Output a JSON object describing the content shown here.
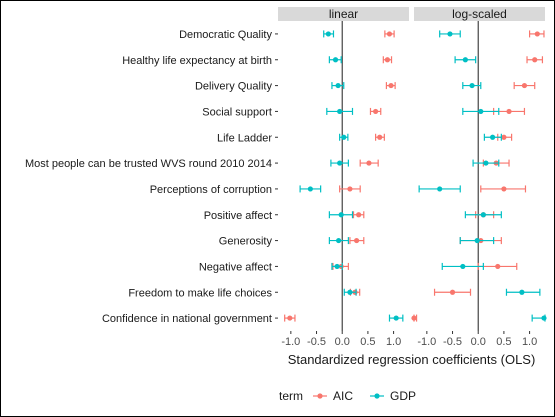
{
  "chart_data": {
    "type": "scatter",
    "subtype": "coefficient-plot-with-error-bars",
    "xlabel": "Standardized regression coefficients (OLS)",
    "facets": [
      "linear",
      "log-scaled"
    ],
    "xlim": [
      -1.25,
      1.3
    ],
    "xticks": [
      -1.0,
      -0.5,
      0.0,
      0.5,
      1.0
    ],
    "xtick_labels": [
      "-1.0",
      "-0.5",
      "0.0",
      "0.5",
      "1.0"
    ],
    "reference_line": 0,
    "terms": [
      "Democratic Quality",
      "Healthy life expectancy at birth",
      "Delivery Quality",
      "Social support",
      "Life Ladder",
      "Most people can be trusted  WVS round 2010 2014",
      "Perceptions of corruption",
      "Positive affect",
      "Generosity",
      "Negative affect",
      "Freedom to make life choices",
      "Confidence in national government"
    ],
    "legend": {
      "title": "term",
      "position": "bottom",
      "entries": [
        {
          "name": "AIC",
          "color": "#F8766D"
        },
        {
          "name": "GDP",
          "color": "#00BFC4"
        }
      ]
    },
    "series": [
      {
        "facet": "linear",
        "name": "AIC",
        "color": "#F8766D",
        "points": [
          {
            "term": "Democratic Quality",
            "est": 0.92,
            "lo": 0.83,
            "hi": 1.01
          },
          {
            "term": "Healthy life expectancy at birth",
            "est": 0.88,
            "lo": 0.8,
            "hi": 0.96
          },
          {
            "term": "Delivery Quality",
            "est": 0.95,
            "lo": 0.86,
            "hi": 1.03
          },
          {
            "term": "Social support",
            "est": 0.65,
            "lo": 0.55,
            "hi": 0.75
          },
          {
            "term": "Life Ladder",
            "est": 0.73,
            "lo": 0.65,
            "hi": 0.82
          },
          {
            "term": "Most people can be trusted  WVS round 2010 2014",
            "est": 0.52,
            "lo": 0.35,
            "hi": 0.7
          },
          {
            "term": "Perceptions of corruption",
            "est": 0.15,
            "lo": -0.05,
            "hi": 0.35
          },
          {
            "term": "Positive affect",
            "est": 0.32,
            "lo": 0.22,
            "hi": 0.42
          },
          {
            "term": "Generosity",
            "est": 0.28,
            "lo": 0.15,
            "hi": 0.42
          },
          {
            "term": "Negative affect",
            "est": -0.02,
            "lo": -0.18,
            "hi": 0.12
          },
          {
            "term": "Freedom to make life choices",
            "est": 0.25,
            "lo": 0.16,
            "hi": 0.34
          },
          {
            "term": "Confidence in national government",
            "est": -1.02,
            "lo": -1.12,
            "hi": -0.92
          }
        ]
      },
      {
        "facet": "linear",
        "name": "GDP",
        "color": "#00BFC4",
        "points": [
          {
            "term": "Democratic Quality",
            "est": -0.27,
            "lo": -0.36,
            "hi": -0.17
          },
          {
            "term": "Healthy life expectancy at birth",
            "est": -0.13,
            "lo": -0.25,
            "hi": -0.02
          },
          {
            "term": "Delivery Quality",
            "est": -0.08,
            "lo": -0.2,
            "hi": 0.03
          },
          {
            "term": "Social support",
            "est": -0.05,
            "lo": -0.3,
            "hi": 0.2
          },
          {
            "term": "Life Ladder",
            "est": 0.03,
            "lo": -0.05,
            "hi": 0.11
          },
          {
            "term": "Most people can be trusted  WVS round 2010 2014",
            "est": -0.05,
            "lo": -0.22,
            "hi": 0.12
          },
          {
            "term": "Perceptions of corruption",
            "est": -0.62,
            "lo": -0.82,
            "hi": -0.42
          },
          {
            "term": "Positive affect",
            "est": -0.02,
            "lo": -0.25,
            "hi": 0.2
          },
          {
            "term": "Generosity",
            "est": -0.07,
            "lo": -0.25,
            "hi": 0.12
          },
          {
            "term": "Negative affect",
            "est": -0.1,
            "lo": -0.2,
            "hi": 0.0
          },
          {
            "term": "Freedom to make life choices",
            "est": 0.15,
            "lo": 0.04,
            "hi": 0.27
          },
          {
            "term": "Confidence in national government",
            "est": 1.05,
            "lo": 0.92,
            "hi": 1.18
          }
        ]
      },
      {
        "facet": "log-scaled",
        "name": "AIC",
        "color": "#F8766D",
        "points": [
          {
            "term": "Democratic Quality",
            "est": 1.15,
            "lo": 1.0,
            "hi": 1.28
          },
          {
            "term": "Healthy life expectancy at birth",
            "est": 1.1,
            "lo": 0.95,
            "hi": 1.25
          },
          {
            "term": "Delivery Quality",
            "est": 0.9,
            "lo": 0.7,
            "hi": 1.1
          },
          {
            "term": "Social support",
            "est": 0.6,
            "lo": 0.3,
            "hi": 0.9
          },
          {
            "term": "Life Ladder",
            "est": 0.5,
            "lo": 0.38,
            "hi": 0.65
          },
          {
            "term": "Most people can be trusted  WVS round 2010 2014",
            "est": 0.35,
            "lo": 0.1,
            "hi": 0.6
          },
          {
            "term": "Perceptions of corruption",
            "est": 0.5,
            "lo": 0.05,
            "hi": 0.92
          },
          {
            "term": "Positive affect",
            "est": 0.1,
            "lo": -0.05,
            "hi": 0.3
          },
          {
            "term": "Generosity",
            "est": 0.05,
            "lo": -0.35,
            "hi": 0.45
          },
          {
            "term": "Negative affect",
            "est": 0.38,
            "lo": 0.0,
            "hi": 0.75
          },
          {
            "term": "Freedom to make life choices",
            "est": -0.5,
            "lo": -0.85,
            "hi": -0.15
          },
          {
            "term": "Confidence in national government",
            "est": -1.25,
            "lo": -1.3,
            "hi": -1.2
          }
        ]
      },
      {
        "facet": "log-scaled",
        "name": "GDP",
        "color": "#00BFC4",
        "points": [
          {
            "term": "Democratic Quality",
            "est": -0.55,
            "lo": -0.75,
            "hi": -0.35
          },
          {
            "term": "Healthy life expectancy at birth",
            "est": -0.25,
            "lo": -0.45,
            "hi": -0.05
          },
          {
            "term": "Delivery Quality",
            "est": -0.12,
            "lo": -0.3,
            "hi": 0.05
          },
          {
            "term": "Social support",
            "est": 0.05,
            "lo": -0.3,
            "hi": 0.4
          },
          {
            "term": "Life Ladder",
            "est": 0.28,
            "lo": 0.12,
            "hi": 0.45
          },
          {
            "term": "Most people can be trusted  WVS round 2010 2014",
            "est": 0.15,
            "lo": -0.1,
            "hi": 0.4
          },
          {
            "term": "Perceptions of corruption",
            "est": -0.75,
            "lo": -1.15,
            "hi": -0.35
          },
          {
            "term": "Positive affect",
            "est": 0.1,
            "lo": -0.25,
            "hi": 0.45
          },
          {
            "term": "Generosity",
            "est": -0.02,
            "lo": -0.35,
            "hi": 0.3
          },
          {
            "term": "Negative affect",
            "est": -0.3,
            "lo": -0.7,
            "hi": 0.1
          },
          {
            "term": "Freedom to make life choices",
            "est": 0.85,
            "lo": 0.55,
            "hi": 1.2
          },
          {
            "term": "Confidence in national government",
            "est": 1.28,
            "lo": 1.05,
            "hi": 1.3
          }
        ]
      }
    ]
  }
}
